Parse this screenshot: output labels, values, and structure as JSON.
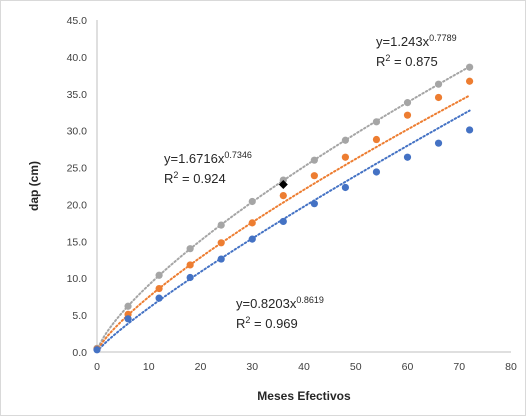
{
  "chart_data": {
    "type": "scatter",
    "xlabel": "Meses Efectivos",
    "ylabel": "dap (cm)",
    "xlim": [
      0,
      80
    ],
    "ylim": [
      0,
      45
    ],
    "x_ticks": [
      "0",
      "10",
      "20",
      "30",
      "40",
      "50",
      "60",
      "70",
      "80"
    ],
    "y_ticks": [
      "0.0",
      "5.0",
      "10.0",
      "15.0",
      "20.0",
      "25.0",
      "30.0",
      "35.0",
      "40.0",
      "45.0"
    ],
    "grid": false,
    "legend": "none",
    "series": [
      {
        "color": "#a5a5a5",
        "x": [
          0,
          6,
          12,
          18,
          24,
          30,
          36,
          42,
          48,
          54,
          60,
          66,
          72
        ],
        "y": [
          0.5,
          6.2,
          10.4,
          14.0,
          17.2,
          20.4,
          23.3,
          26.0,
          28.7,
          31.2,
          33.8,
          36.3,
          38.6
        ],
        "trendline": {
          "a": 1.6716,
          "b": 0.7346
        },
        "equation_base": "y=1.6716x",
        "equation_exp": "0.7346",
        "r2_label": "R",
        "r2_sup": "2",
        "r2_value": " = 0.924"
      },
      {
        "color": "#ed7d31",
        "x": [
          0,
          6,
          12,
          18,
          24,
          30,
          36,
          42,
          48,
          54,
          60,
          66,
          72
        ],
        "y": [
          0.4,
          5.1,
          8.6,
          11.8,
          14.8,
          17.5,
          21.2,
          23.9,
          26.4,
          28.8,
          32.1,
          34.5,
          36.7
        ],
        "trendline": {
          "a": 1.243,
          "b": 0.7789
        },
        "equation_base": "y=1.243x",
        "equation_exp": "0.7789",
        "r2_label": "R",
        "r2_sup": "2",
        "r2_value": " = 0.875"
      },
      {
        "color": "#4472c4",
        "x": [
          0,
          6,
          12,
          18,
          24,
          30,
          36,
          42,
          48,
          54,
          60,
          66,
          72
        ],
        "y": [
          0.3,
          4.5,
          7.3,
          10.1,
          12.6,
          15.3,
          17.7,
          20.1,
          22.3,
          24.4,
          26.4,
          28.3,
          30.1
        ],
        "trendline": {
          "a": 0.8203,
          "b": 0.8619
        },
        "equation_base": "y=0.8203x",
        "equation_exp": "0.8619",
        "r2_label": "R",
        "r2_sup": "2",
        "r2_value": " = 0.969"
      }
    ],
    "highlight_point": {
      "x": 36,
      "y": 22.7,
      "color": "#000000"
    }
  }
}
